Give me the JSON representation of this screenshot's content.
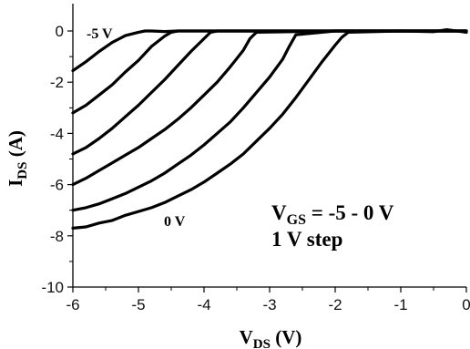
{
  "chart_data": {
    "type": "line",
    "title": "",
    "xlabel": {
      "main": "V",
      "sub": "DS",
      "unit": " (V)"
    },
    "ylabel": {
      "main": "I",
      "sub": "DS",
      "unit": " (A)"
    },
    "xlim": [
      -6,
      0
    ],
    "ylim": [
      -10,
      0
    ],
    "xticks": [
      -6,
      -5,
      -4,
      -3,
      -2,
      -1,
      0
    ],
    "yticks": [
      -10,
      -8,
      -6,
      -4,
      -2,
      0
    ],
    "grid": false,
    "legend": "none",
    "color": "#000000",
    "annotations": {
      "top_curve": "-5 V",
      "bottom_curve": "0 V",
      "vgs_line": {
        "main": "V",
        "sub": "GS",
        "text": " = -5 - 0 V"
      },
      "step_line": "1 V step"
    },
    "series": [
      {
        "x": [
          -6,
          -5.8,
          -5.6,
          -5.4,
          -5.2,
          -5.0,
          -4.9,
          -4.8,
          -4.6,
          -4.4,
          -4.0,
          -3.0,
          -2.0,
          -1.0,
          0.0
        ],
        "y": [
          -1.55,
          -1.2,
          -0.8,
          -0.45,
          -0.18,
          -0.05,
          0.0,
          0.0,
          -0.02,
          0.0,
          0.0,
          0.0,
          0.0,
          0.0,
          0.0
        ]
      },
      {
        "x": [
          -6,
          -5.8,
          -5.6,
          -5.4,
          -5.2,
          -5.0,
          -4.8,
          -4.6,
          -4.5,
          -4.4,
          -4.0,
          -3.0,
          -2.0,
          -1.0,
          0.0
        ],
        "y": [
          -3.2,
          -2.9,
          -2.5,
          -2.1,
          -1.6,
          -1.15,
          -0.6,
          -0.2,
          -0.05,
          0.0,
          0.0,
          0.0,
          0.0,
          0.0,
          0.0
        ]
      },
      {
        "x": [
          -6,
          -5.8,
          -5.6,
          -5.4,
          -5.2,
          -5.0,
          -4.8,
          -4.6,
          -4.4,
          -4.2,
          -4.0,
          -3.9,
          -3.8,
          -3.0,
          -2.0,
          -1.0,
          0.0
        ],
        "y": [
          -4.8,
          -4.55,
          -4.2,
          -3.8,
          -3.35,
          -2.9,
          -2.4,
          -1.9,
          -1.35,
          -0.8,
          -0.3,
          -0.05,
          0.0,
          0.0,
          0.0,
          0.0,
          0.0
        ]
      },
      {
        "x": [
          -6,
          -5.8,
          -5.6,
          -5.4,
          -5.2,
          -5.0,
          -4.8,
          -4.6,
          -4.4,
          -4.2,
          -4.0,
          -3.8,
          -3.6,
          -3.4,
          -3.3,
          -3.2,
          -2.0,
          -1.0,
          0.0
        ],
        "y": [
          -6.0,
          -5.75,
          -5.45,
          -5.15,
          -4.85,
          -4.55,
          -4.2,
          -3.85,
          -3.45,
          -3.0,
          -2.5,
          -2.0,
          -1.4,
          -0.75,
          -0.3,
          -0.05,
          0.0,
          0.0,
          0.0
        ]
      },
      {
        "x": [
          -6,
          -5.8,
          -5.6,
          -5.4,
          -5.2,
          -5.0,
          -4.8,
          -4.6,
          -4.4,
          -4.2,
          -4.0,
          -3.8,
          -3.6,
          -3.4,
          -3.2,
          -3.0,
          -2.8,
          -2.7,
          -2.6,
          -2.0,
          -1.0,
          0.0
        ],
        "y": [
          -7.0,
          -6.9,
          -6.75,
          -6.55,
          -6.35,
          -6.1,
          -5.85,
          -5.55,
          -5.2,
          -4.85,
          -4.45,
          -4.0,
          -3.55,
          -3.0,
          -2.4,
          -1.8,
          -1.1,
          -0.6,
          -0.15,
          0.0,
          0.0,
          0.0
        ]
      },
      {
        "x": [
          -6,
          -5.8,
          -5.6,
          -5.4,
          -5.2,
          -5.0,
          -4.8,
          -4.6,
          -4.4,
          -4.2,
          -4.0,
          -3.8,
          -3.6,
          -3.4,
          -3.2,
          -3.0,
          -2.8,
          -2.6,
          -2.4,
          -2.2,
          -2.0,
          -1.9,
          -1.8,
          -1.0,
          -0.5,
          -0.3,
          0.0
        ],
        "y": [
          -7.7,
          -7.65,
          -7.5,
          -7.4,
          -7.2,
          -7.05,
          -6.9,
          -6.7,
          -6.45,
          -6.2,
          -5.9,
          -5.55,
          -5.2,
          -4.8,
          -4.3,
          -3.8,
          -3.25,
          -2.6,
          -1.9,
          -1.2,
          -0.55,
          -0.25,
          -0.05,
          0.0,
          -0.03,
          0.05,
          -0.05
        ]
      }
    ]
  }
}
